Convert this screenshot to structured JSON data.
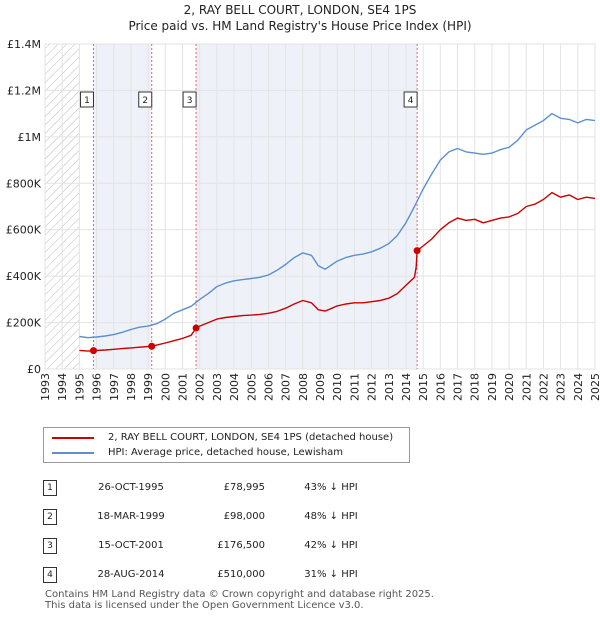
{
  "title": "2, RAY BELL COURT, LONDON, SE4 1PS",
  "subtitle": "Price paid vs. HM Land Registry's House Price Index (HPI)",
  "chart_data": {
    "type": "line",
    "title": "2, RAY BELL COURT, LONDON, SE4 1PS",
    "subtitle": "Price paid vs. HM Land Registry's House Price Index (HPI)",
    "xlim": [
      1993,
      2025
    ],
    "ylim": [
      0,
      1400000
    ],
    "x_ticks": [
      1993,
      1994,
      1995,
      1996,
      1997,
      1998,
      1999,
      2000,
      2001,
      2002,
      2003,
      2004,
      2005,
      2006,
      2007,
      2008,
      2009,
      2010,
      2011,
      2012,
      2013,
      2014,
      2015,
      2016,
      2017,
      2018,
      2019,
      2020,
      2021,
      2022,
      2023,
      2024,
      2025
    ],
    "y_ticks": [
      {
        "value": 0,
        "label": "£0"
      },
      {
        "value": 200000,
        "label": "£200K"
      },
      {
        "value": 400000,
        "label": "£400K"
      },
      {
        "value": 600000,
        "label": "£600K"
      },
      {
        "value": 800000,
        "label": "£800K"
      },
      {
        "value": 1000000,
        "label": "£1M"
      },
      {
        "value": 1200000,
        "label": "£1.2M"
      },
      {
        "value": 1400000,
        "label": "£1.4M"
      }
    ],
    "grid": true,
    "colors": {
      "price": "#cc0000",
      "hpi": "#5b8fd1",
      "sale_line": "#e06666",
      "shade": "#eef2f8",
      "hatch": "#bbbbbb"
    },
    "series": [
      {
        "name": "2, RAY BELL COURT, LONDON, SE4 1PS (detached house)",
        "color": "#cc0000",
        "points": [
          [
            1995.0,
            80000
          ],
          [
            1995.5,
            77000
          ],
          [
            1995.82,
            78995
          ],
          [
            1996.0,
            80000
          ],
          [
            1996.5,
            82000
          ],
          [
            1997.0,
            85000
          ],
          [
            1997.5,
            88000
          ],
          [
            1998.0,
            91000
          ],
          [
            1998.5,
            94000
          ],
          [
            1999.0,
            97000
          ],
          [
            1999.21,
            98000
          ],
          [
            1999.5,
            103000
          ],
          [
            2000.0,
            112000
          ],
          [
            2000.5,
            122000
          ],
          [
            2001.0,
            132000
          ],
          [
            2001.5,
            145000
          ],
          [
            2001.79,
            176500
          ],
          [
            2002.0,
            185000
          ],
          [
            2002.5,
            200000
          ],
          [
            2003.0,
            215000
          ],
          [
            2003.5,
            222000
          ],
          [
            2004.0,
            226000
          ],
          [
            2004.5,
            230000
          ],
          [
            2005.0,
            232000
          ],
          [
            2005.5,
            235000
          ],
          [
            2006.0,
            240000
          ],
          [
            2006.5,
            248000
          ],
          [
            2007.0,
            262000
          ],
          [
            2007.5,
            280000
          ],
          [
            2008.0,
            295000
          ],
          [
            2008.5,
            285000
          ],
          [
            2008.9,
            255000
          ],
          [
            2009.3,
            250000
          ],
          [
            2009.7,
            262000
          ],
          [
            2010.0,
            272000
          ],
          [
            2010.5,
            280000
          ],
          [
            2011.0,
            285000
          ],
          [
            2011.5,
            285000
          ],
          [
            2012.0,
            290000
          ],
          [
            2012.5,
            295000
          ],
          [
            2013.0,
            305000
          ],
          [
            2013.5,
            325000
          ],
          [
            2014.0,
            360000
          ],
          [
            2014.5,
            395000
          ],
          [
            2014.6,
            440000
          ],
          [
            2014.65,
            510000
          ],
          [
            2015.0,
            530000
          ],
          [
            2015.5,
            560000
          ],
          [
            2016.0,
            600000
          ],
          [
            2016.5,
            630000
          ],
          [
            2017.0,
            650000
          ],
          [
            2017.5,
            640000
          ],
          [
            2018.0,
            645000
          ],
          [
            2018.5,
            630000
          ],
          [
            2019.0,
            640000
          ],
          [
            2019.5,
            650000
          ],
          [
            2020.0,
            655000
          ],
          [
            2020.5,
            670000
          ],
          [
            2021.0,
            700000
          ],
          [
            2021.5,
            710000
          ],
          [
            2022.0,
            730000
          ],
          [
            2022.5,
            760000
          ],
          [
            2023.0,
            740000
          ],
          [
            2023.5,
            750000
          ],
          [
            2024.0,
            730000
          ],
          [
            2024.5,
            740000
          ],
          [
            2025.0,
            735000
          ]
        ]
      },
      {
        "name": "HPI: Average price, detached house, Lewisham",
        "color": "#5b8fd1",
        "points": [
          [
            1995.0,
            140000
          ],
          [
            1995.5,
            135000
          ],
          [
            1996.0,
            138000
          ],
          [
            1996.5,
            142000
          ],
          [
            1997.0,
            148000
          ],
          [
            1997.5,
            158000
          ],
          [
            1998.0,
            170000
          ],
          [
            1998.5,
            180000
          ],
          [
            1999.0,
            185000
          ],
          [
            1999.5,
            195000
          ],
          [
            2000.0,
            215000
          ],
          [
            2000.5,
            240000
          ],
          [
            2001.0,
            255000
          ],
          [
            2001.5,
            270000
          ],
          [
            2002.0,
            300000
          ],
          [
            2002.5,
            325000
          ],
          [
            2003.0,
            355000
          ],
          [
            2003.5,
            370000
          ],
          [
            2004.0,
            380000
          ],
          [
            2004.5,
            385000
          ],
          [
            2005.0,
            390000
          ],
          [
            2005.5,
            395000
          ],
          [
            2006.0,
            405000
          ],
          [
            2006.5,
            425000
          ],
          [
            2007.0,
            450000
          ],
          [
            2007.5,
            480000
          ],
          [
            2008.0,
            500000
          ],
          [
            2008.5,
            490000
          ],
          [
            2008.9,
            445000
          ],
          [
            2009.3,
            430000
          ],
          [
            2009.8,
            455000
          ],
          [
            2010.0,
            465000
          ],
          [
            2010.5,
            480000
          ],
          [
            2011.0,
            490000
          ],
          [
            2011.5,
            495000
          ],
          [
            2012.0,
            505000
          ],
          [
            2012.5,
            520000
          ],
          [
            2013.0,
            540000
          ],
          [
            2013.5,
            575000
          ],
          [
            2014.0,
            630000
          ],
          [
            2014.5,
            700000
          ],
          [
            2015.0,
            775000
          ],
          [
            2015.5,
            840000
          ],
          [
            2016.0,
            900000
          ],
          [
            2016.5,
            935000
          ],
          [
            2017.0,
            950000
          ],
          [
            2017.5,
            935000
          ],
          [
            2018.0,
            930000
          ],
          [
            2018.5,
            925000
          ],
          [
            2019.0,
            930000
          ],
          [
            2019.5,
            945000
          ],
          [
            2020.0,
            955000
          ],
          [
            2020.5,
            985000
          ],
          [
            2021.0,
            1030000
          ],
          [
            2021.5,
            1050000
          ],
          [
            2022.0,
            1070000
          ],
          [
            2022.5,
            1100000
          ],
          [
            2023.0,
            1080000
          ],
          [
            2023.5,
            1075000
          ],
          [
            2024.0,
            1060000
          ],
          [
            2024.5,
            1075000
          ],
          [
            2025.0,
            1070000
          ]
        ]
      }
    ],
    "sales": [
      {
        "id": "1",
        "date": "26-OCT-1995",
        "x": 1995.82,
        "price": 78995,
        "price_label": "£78,995",
        "hpi_diff": "43% ↓ HPI"
      },
      {
        "id": "2",
        "date": "18-MAR-1999",
        "x": 1999.21,
        "price": 98000,
        "price_label": "£98,000",
        "hpi_diff": "48% ↓ HPI"
      },
      {
        "id": "3",
        "date": "15-OCT-2001",
        "x": 2001.79,
        "price": 176500,
        "price_label": "£176,500",
        "hpi_diff": "42% ↓ HPI"
      },
      {
        "id": "4",
        "date": "28-AUG-2014",
        "x": 2014.65,
        "price": 510000,
        "price_label": "£510,000",
        "hpi_diff": "31% ↓ HPI"
      }
    ],
    "hatched_ranges": [
      [
        1993,
        1995
      ]
    ]
  },
  "legend": {
    "price_label": "2, RAY BELL COURT, LONDON, SE4 1PS (detached house)",
    "hpi_label": "HPI: Average price, detached house, Lewisham"
  },
  "footer": {
    "line1": "Contains HM Land Registry data © Crown copyright and database right 2025.",
    "line2": "This data is licensed under the Open Government Licence v3.0."
  }
}
